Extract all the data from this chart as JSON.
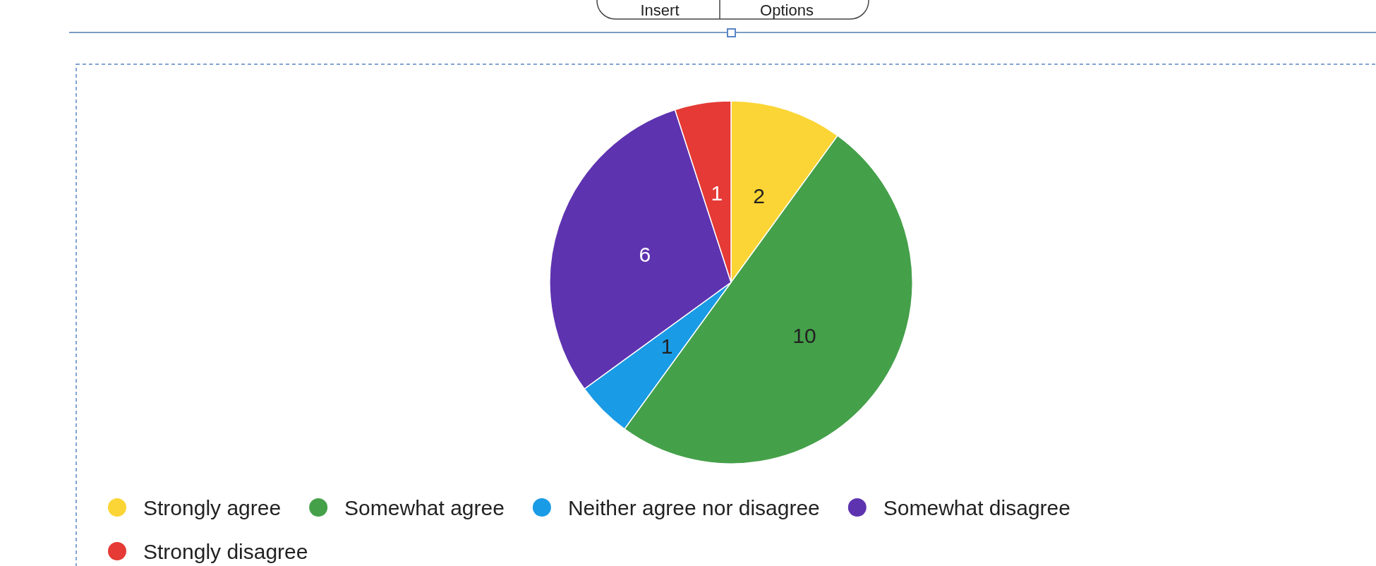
{
  "chart_data": {
    "type": "pie",
    "categories": [
      "Strongly agree",
      "Somewhat agree",
      "Neither agree nor disagree",
      "Somewhat disagree",
      "Strongly disagree"
    ],
    "values": [
      2,
      10,
      1,
      6,
      1
    ],
    "colors": [
      "#fbd535",
      "#45a04a",
      "#1a9be6",
      "#5e33b0",
      "#e53a35"
    ],
    "data_labels": true,
    "legend": "bottom",
    "annotations": [
      "Insert",
      "Options"
    ]
  }
}
